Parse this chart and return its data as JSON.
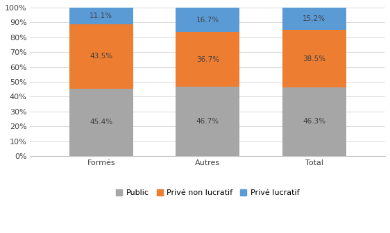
{
  "categories": [
    "Formés",
    "Autres",
    "Total"
  ],
  "public": [
    45.4,
    46.7,
    46.3
  ],
  "prive_non_lucratif": [
    43.5,
    36.7,
    38.5
  ],
  "prive_lucratif": [
    11.1,
    16.7,
    15.2
  ],
  "color_public": "#a6a6a6",
  "color_prive_non_lucratif": "#ed7d31",
  "color_prive_lucratif": "#5b9bd5",
  "label_public": "Public",
  "label_prive_non_lucratif": "Privé non lucratif",
  "label_prive_lucratif": "Privé lucratif",
  "ylim": [
    0,
    100
  ],
  "yticks": [
    0,
    10,
    20,
    30,
    40,
    50,
    60,
    70,
    80,
    90,
    100
  ],
  "bar_width": 0.18,
  "x_positions": [
    0.25,
    0.55,
    0.85
  ],
  "xlim": [
    0.05,
    1.05
  ],
  "fontsize_tick": 8,
  "fontsize_label": 7.5,
  "fontsize_legend": 8,
  "background_color": "#ffffff",
  "grid_color": "#d9d9d9",
  "text_color": "#404040"
}
